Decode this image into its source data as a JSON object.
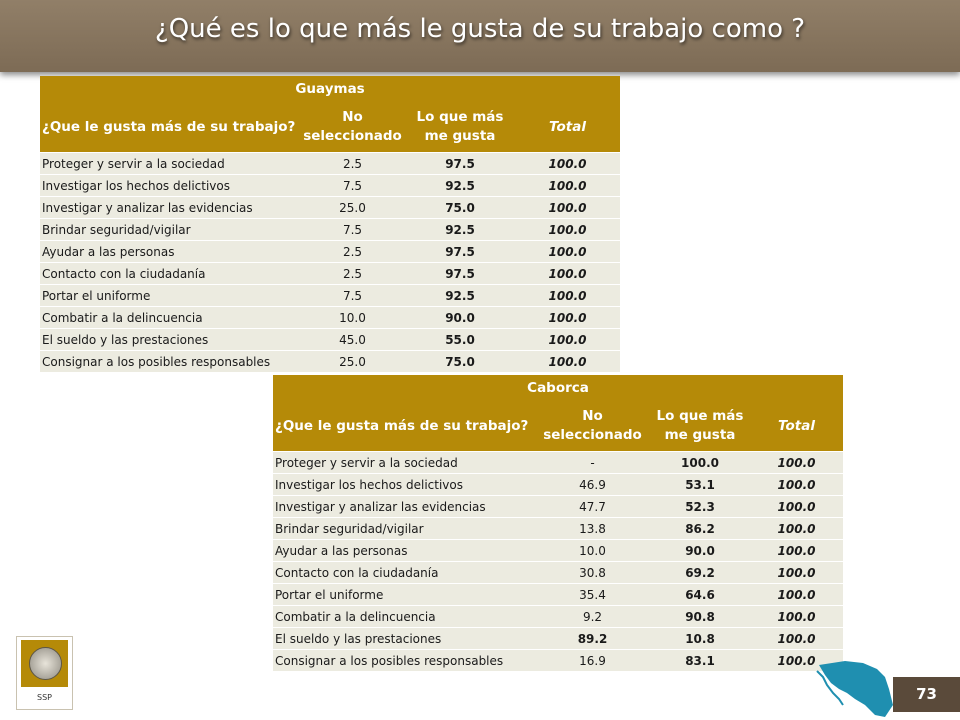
{
  "title": "¿Qué es lo que más le gusta de su trabajo como ?",
  "page_number": "73",
  "logo_text": "SSP",
  "columns": {
    "question": "¿Que le gusta más de su trabajo?",
    "not_selected": "No seleccionado",
    "likes_most": "Lo que más me gusta",
    "total": "Total"
  },
  "tables": [
    {
      "place": "Guaymas",
      "rows": [
        {
          "label": "Proteger y servir a la sociedad",
          "no": "2.5",
          "si": "97.5",
          "total": "100.0"
        },
        {
          "label": "Investigar los hechos delictivos",
          "no": "7.5",
          "si": "92.5",
          "total": "100.0"
        },
        {
          "label": "Investigar y analizar las evidencias",
          "no": "25.0",
          "si": "75.0",
          "total": "100.0"
        },
        {
          "label": "Brindar seguridad/vigilar",
          "no": "7.5",
          "si": "92.5",
          "total": "100.0"
        },
        {
          "label": "Ayudar a las personas",
          "no": "2.5",
          "si": "97.5",
          "total": "100.0"
        },
        {
          "label": "Contacto con la ciudadanía",
          "no": "2.5",
          "si": "97.5",
          "total": "100.0"
        },
        {
          "label": "Portar el uniforme",
          "no": "7.5",
          "si": "92.5",
          "total": "100.0"
        },
        {
          "label": "Combatir a la delincuencia",
          "no": "10.0",
          "si": "90.0",
          "total": "100.0"
        },
        {
          "label": "El sueldo y las prestaciones",
          "no": "45.0",
          "si": "55.0",
          "total": "100.0"
        },
        {
          "label": "Consignar a los posibles responsables",
          "no": "25.0",
          "si": "75.0",
          "total": "100.0"
        }
      ]
    },
    {
      "place": "Caborca",
      "rows": [
        {
          "label": "Proteger y servir a la sociedad",
          "no": "-",
          "si": "100.0",
          "total": "100.0"
        },
        {
          "label": "Investigar los hechos delictivos",
          "no": "46.9",
          "si": "53.1",
          "total": "100.0"
        },
        {
          "label": "Investigar y analizar las evidencias",
          "no": "47.7",
          "si": "52.3",
          "total": "100.0"
        },
        {
          "label": "Brindar seguridad/vigilar",
          "no": "13.8",
          "si": "86.2",
          "total": "100.0"
        },
        {
          "label": "Ayudar a las personas",
          "no": "10.0",
          "si": "90.0",
          "total": "100.0"
        },
        {
          "label": "Contacto con la ciudadanía",
          "no": "30.8",
          "si": "69.2",
          "total": "100.0"
        },
        {
          "label": "Portar el uniforme",
          "no": "35.4",
          "si": "64.6",
          "total": "100.0"
        },
        {
          "label": "Combatir a la delincuencia",
          "no": "9.2",
          "si": "90.8",
          "total": "100.0"
        },
        {
          "label": "El sueldo y las prestaciones",
          "no": "89.2",
          "si": "10.8",
          "total": "100.0",
          "bold_no": true
        },
        {
          "label": "Consignar a los posibles responsables",
          "no": "16.9",
          "si": "83.1",
          "total": "100.0"
        }
      ]
    }
  ]
}
